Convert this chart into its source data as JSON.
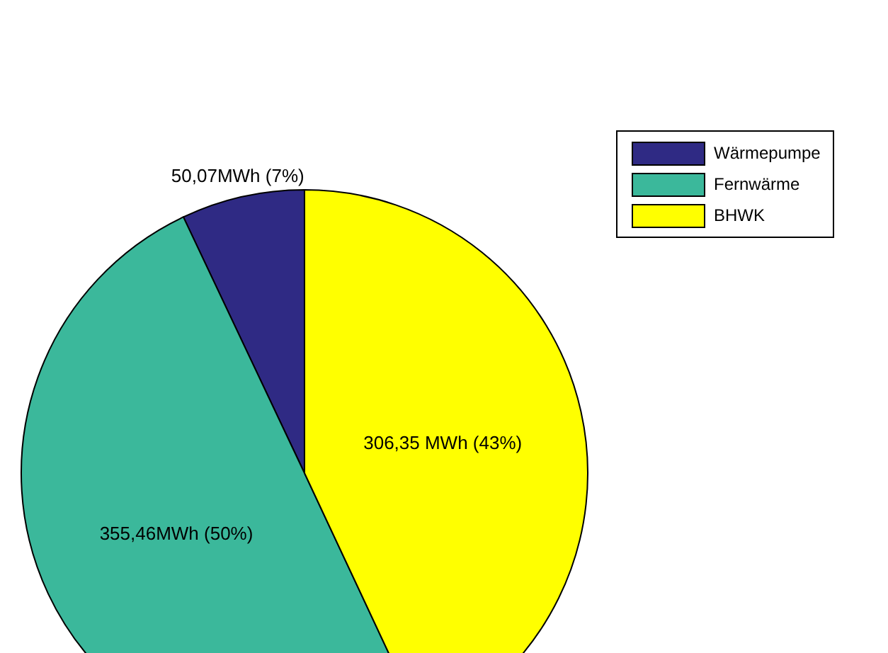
{
  "chart_data": {
    "type": "pie",
    "categories": [
      "Wärmepumpe",
      "Fernwärme",
      "BHWK"
    ],
    "values": [
      50.07,
      355.46,
      306.35
    ],
    "colors": [
      "#2f2a84",
      "#3bb89b",
      "#ffff00"
    ],
    "value_labels": [
      "50,07MWh (7%)",
      "355,46MWh (50%)",
      "306,35 MWh (43%)"
    ],
    "legend": "top right"
  }
}
